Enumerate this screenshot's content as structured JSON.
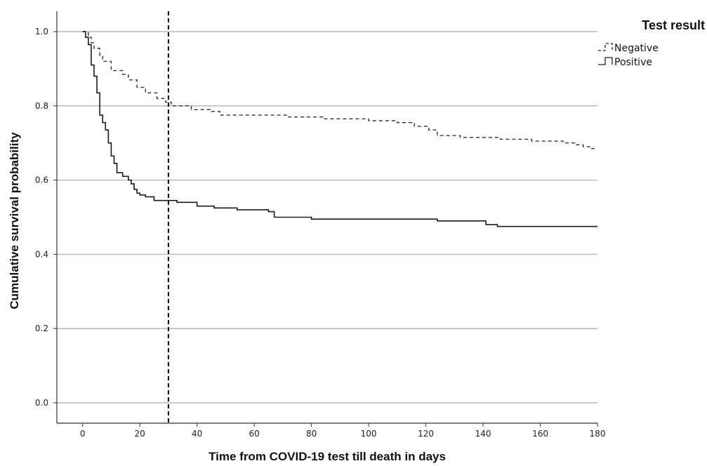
{
  "chart_data": {
    "type": "line",
    "step": true,
    "title": "",
    "xlabel": "Time from COVID-19 test till death in days",
    "ylabel": "Cumulative survival probability",
    "xlim": [
      -9,
      180
    ],
    "ylim": [
      -0.055,
      1.055
    ],
    "x_ticks": [
      0,
      20,
      40,
      60,
      80,
      100,
      120,
      140,
      160,
      180
    ],
    "y_ticks": [
      0.0,
      0.2,
      0.4,
      0.6,
      0.8,
      1.0
    ],
    "y_tick_labels": [
      "0.0",
      "0.2",
      "0.4",
      "0.6",
      "0.8",
      "1.0"
    ],
    "grid": "horizontal",
    "reference_line": {
      "x": 30,
      "style": "dashed"
    },
    "legend": {
      "title": "Test result",
      "position": "top-right",
      "entries": [
        {
          "name": "Negative",
          "line_style": "dashed"
        },
        {
          "name": "Positive",
          "line_style": "solid"
        }
      ]
    },
    "series": [
      {
        "name": "Negative",
        "line_style": "dashed",
        "color": "#333333",
        "x": [
          0,
          2,
          3,
          4,
          6,
          7,
          10,
          14,
          16,
          19,
          22,
          26,
          29,
          31,
          38,
          45,
          48,
          60,
          72,
          84,
          100,
          110,
          116,
          121,
          124,
          132,
          146,
          157,
          164,
          168,
          172,
          175,
          178,
          180
        ],
        "y": [
          1.0,
          0.985,
          0.97,
          0.955,
          0.935,
          0.92,
          0.895,
          0.885,
          0.87,
          0.85,
          0.835,
          0.82,
          0.81,
          0.8,
          0.79,
          0.785,
          0.775,
          0.775,
          0.77,
          0.765,
          0.76,
          0.755,
          0.745,
          0.735,
          0.72,
          0.715,
          0.71,
          0.705,
          0.705,
          0.7,
          0.695,
          0.69,
          0.685,
          0.685
        ]
      },
      {
        "name": "Positive",
        "line_style": "solid",
        "color": "#1a1a1a",
        "x": [
          0,
          1,
          2,
          3,
          4,
          5,
          6,
          7,
          8,
          9,
          10,
          11,
          12,
          14,
          16,
          17,
          18,
          19,
          20,
          22,
          25,
          33,
          40,
          46,
          54,
          65,
          67,
          80,
          100,
          124,
          141,
          145,
          180
        ],
        "y": [
          1.0,
          0.985,
          0.965,
          0.91,
          0.88,
          0.835,
          0.775,
          0.755,
          0.735,
          0.7,
          0.665,
          0.645,
          0.62,
          0.61,
          0.6,
          0.59,
          0.575,
          0.565,
          0.56,
          0.555,
          0.545,
          0.54,
          0.53,
          0.525,
          0.52,
          0.515,
          0.5,
          0.495,
          0.495,
          0.49,
          0.48,
          0.475,
          0.475
        ]
      }
    ]
  }
}
